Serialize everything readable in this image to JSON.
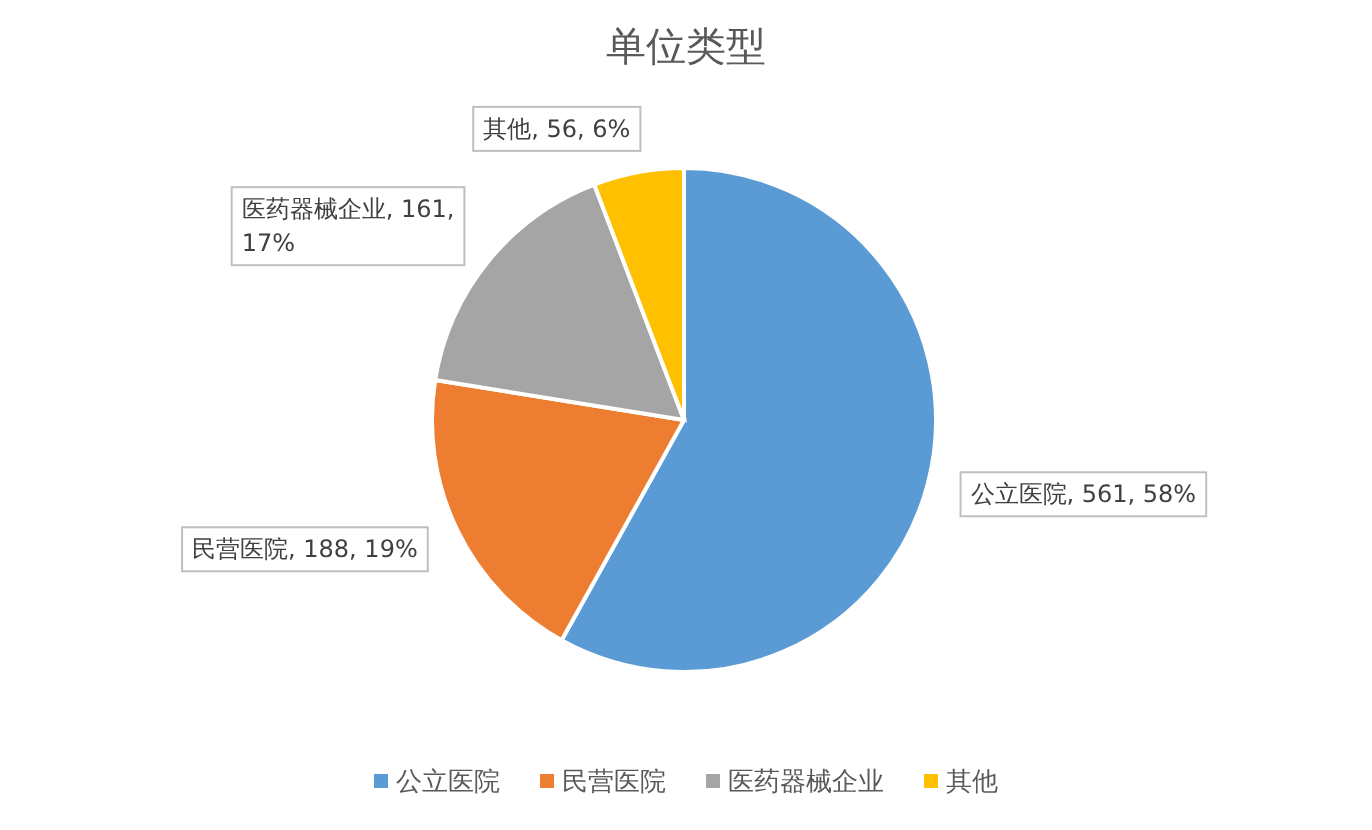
{
  "chart_data": {
    "type": "pie",
    "title": "单位类型",
    "categories": [
      "公立医院",
      "民营医院",
      "医药器械企业",
      "其他"
    ],
    "values": [
      561,
      188,
      161,
      56
    ],
    "colors": [
      "#5b9bd5",
      "#ed7d31",
      "#a5a5a5",
      "#ffc000"
    ],
    "value_labels": [
      "公立医院, 561, 58%",
      "民营医院, 188, 19%",
      "医药器械企业, 161, 17%",
      "其他, 56, 6%"
    ],
    "legend": "bottom"
  }
}
